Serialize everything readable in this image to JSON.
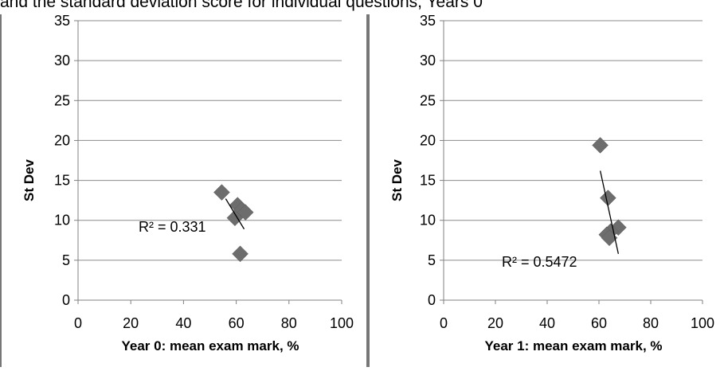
{
  "caption_text": "and the standard deviation score for individual questions, Years 0",
  "chart_data": [
    {
      "type": "scatter",
      "title": "",
      "xlabel": "Year 0: mean exam mark, %",
      "ylabel": "St Dev",
      "xlim": [
        0,
        100
      ],
      "ylim": [
        0,
        35
      ],
      "xticks": [
        0,
        20,
        40,
        60,
        80,
        100
      ],
      "yticks": [
        0,
        5,
        10,
        15,
        20,
        25,
        30,
        35
      ],
      "grid": "horizontal",
      "marker_color": "#6d6d6d",
      "trendline": {
        "type": "linear",
        "x": [
          56,
          63
        ],
        "y": [
          12.7,
          8.9
        ]
      },
      "r_squared_label": "R² = 0.331",
      "points": [
        {
          "x": 54.5,
          "y": 13.5
        },
        {
          "x": 60.5,
          "y": 11.9
        },
        {
          "x": 62.0,
          "y": 11.3
        },
        {
          "x": 63.5,
          "y": 11.0
        },
        {
          "x": 59.5,
          "y": 10.3
        },
        {
          "x": 61.5,
          "y": 5.8
        }
      ]
    },
    {
      "type": "scatter",
      "title": "",
      "xlabel": "Year 1: mean exam mark, %",
      "ylabel": "St Dev",
      "xlim": [
        0,
        100
      ],
      "ylim": [
        0,
        35
      ],
      "xticks": [
        0,
        20,
        40,
        60,
        80,
        100
      ],
      "yticks": [
        0,
        5,
        10,
        15,
        20,
        25,
        30,
        35
      ],
      "grid": "horizontal",
      "marker_color": "#6d6d6d",
      "trendline": {
        "type": "linear",
        "x": [
          60.5,
          67.5
        ],
        "y": [
          16.2,
          5.8
        ]
      },
      "r_squared_label": "R² = 0.5472",
      "points": [
        {
          "x": 60.5,
          "y": 19.4
        },
        {
          "x": 63.5,
          "y": 12.8
        },
        {
          "x": 67.5,
          "y": 9.1
        },
        {
          "x": 64.5,
          "y": 8.6
        },
        {
          "x": 63.0,
          "y": 8.2
        },
        {
          "x": 64.0,
          "y": 7.8
        }
      ]
    }
  ]
}
